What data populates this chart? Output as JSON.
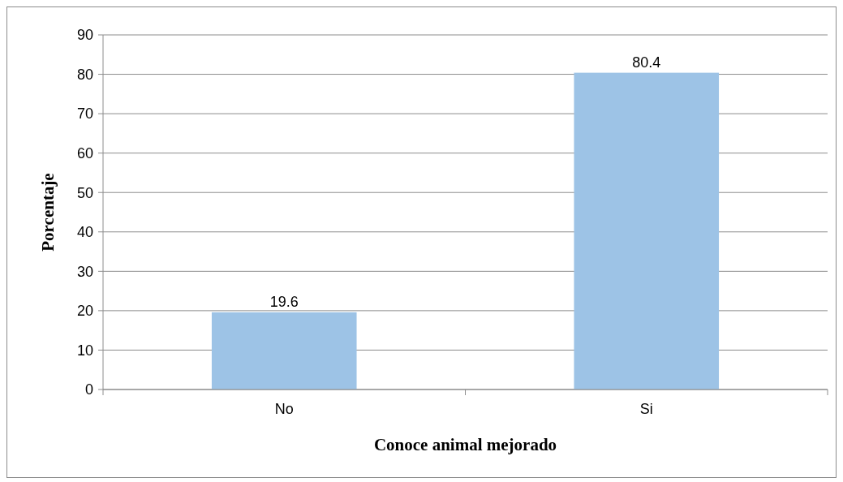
{
  "chart_data": {
    "type": "bar",
    "xlabel": "Conoce animal mejorado",
    "ylabel": "Porcentaje",
    "categories": [
      "No",
      "Si"
    ],
    "values": [
      19.6,
      80.4
    ],
    "color": "#9dc3e6",
    "ylim": [
      0,
      90
    ],
    "yticks": [
      0,
      10,
      20,
      30,
      40,
      50,
      60,
      70,
      80,
      90
    ],
    "grid": "y",
    "data_labels": true
  }
}
